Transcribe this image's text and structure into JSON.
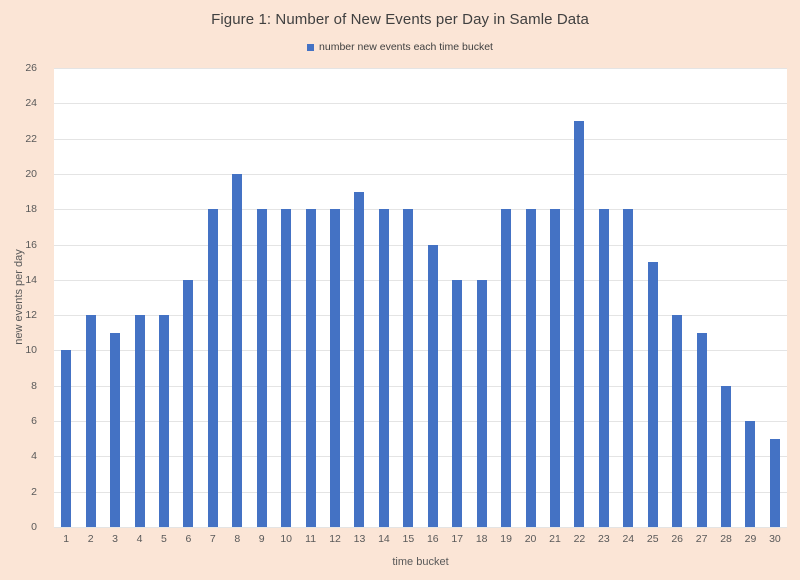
{
  "chart_data": {
    "type": "bar",
    "title": "Figure 1: Number of New Events per Day in Samle Data",
    "legend": [
      "number new events each time bucket"
    ],
    "legend_position": "top",
    "categories": [
      "1",
      "2",
      "3",
      "4",
      "5",
      "6",
      "7",
      "8",
      "9",
      "10",
      "11",
      "12",
      "13",
      "14",
      "15",
      "16",
      "17",
      "18",
      "19",
      "20",
      "21",
      "22",
      "23",
      "24",
      "25",
      "26",
      "27",
      "28",
      "29",
      "30"
    ],
    "values": [
      10,
      12,
      11,
      12,
      12,
      14,
      18,
      20,
      18,
      18,
      18,
      18,
      19,
      18,
      18,
      16,
      14,
      14,
      18,
      18,
      18,
      23,
      18,
      18,
      15,
      12,
      11,
      8,
      6,
      5
    ],
    "xlabel": "time bucket",
    "ylabel": "new events per day",
    "ylim": [
      0,
      26
    ],
    "yticks": [
      0,
      2,
      4,
      6,
      8,
      10,
      12,
      14,
      16,
      18,
      20,
      22,
      24,
      26
    ],
    "grid": true,
    "colors": {
      "bar": "#4472C4",
      "background": "#FBE5D6",
      "plot_background": "#FFFFFF",
      "gridline": "#E4E4E4",
      "tick_text": "#595959",
      "title_text": "#404040"
    }
  }
}
